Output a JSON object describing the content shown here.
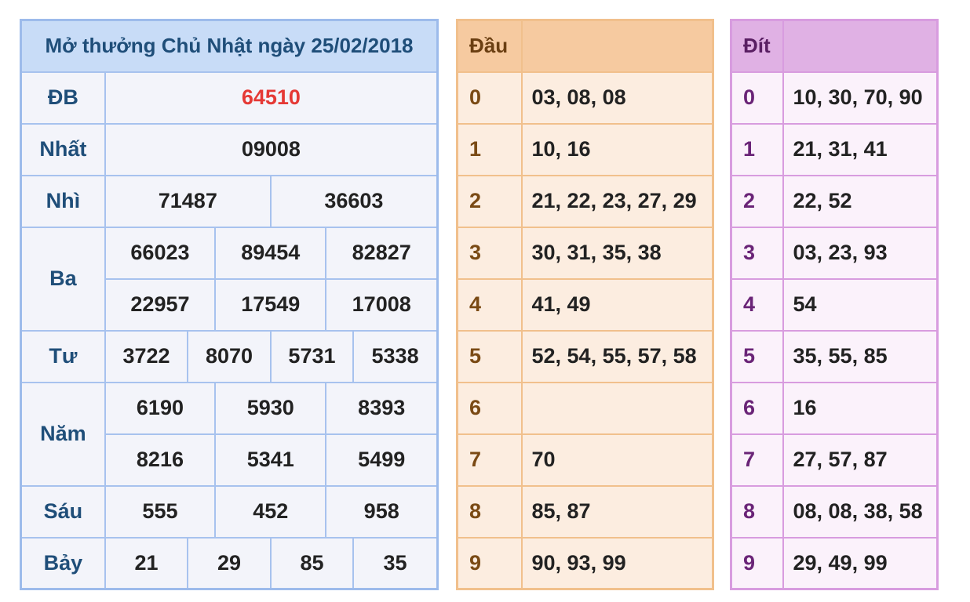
{
  "results": {
    "title": "Mở thưởng Chủ Nhật ngày 25/02/2018",
    "db": {
      "label": "ĐB",
      "values": [
        "64510"
      ]
    },
    "nhat": {
      "label": "Nhất",
      "values": [
        "09008"
      ]
    },
    "nhi": {
      "label": "Nhì",
      "values": [
        "71487",
        "36603"
      ]
    },
    "ba": {
      "label": "Ba",
      "values": [
        "66023",
        "89454",
        "82827",
        "22957",
        "17549",
        "17008"
      ]
    },
    "tu": {
      "label": "Tư",
      "values": [
        "3722",
        "8070",
        "5731",
        "5338"
      ]
    },
    "nam": {
      "label": "Năm",
      "values": [
        "6190",
        "5930",
        "8393",
        "8216",
        "5341",
        "5499"
      ]
    },
    "sau": {
      "label": "Sáu",
      "values": [
        "555",
        "452",
        "958"
      ]
    },
    "bay": {
      "label": "Bảy",
      "values": [
        "21",
        "29",
        "85",
        "35"
      ]
    }
  },
  "dau": {
    "header": "Đầu",
    "rows": [
      {
        "key": "0",
        "value": "03, 08, 08"
      },
      {
        "key": "1",
        "value": "10, 16"
      },
      {
        "key": "2",
        "value": "21, 22, 23, 27, 29"
      },
      {
        "key": "3",
        "value": "30, 31, 35, 38"
      },
      {
        "key": "4",
        "value": "41, 49"
      },
      {
        "key": "5",
        "value": "52, 54, 55, 57, 58"
      },
      {
        "key": "6",
        "value": ""
      },
      {
        "key": "7",
        "value": "70"
      },
      {
        "key": "8",
        "value": "85, 87"
      },
      {
        "key": "9",
        "value": "90, 93, 99"
      }
    ]
  },
  "dit": {
    "header": "Đít",
    "rows": [
      {
        "key": "0",
        "value": "10, 30, 70, 90"
      },
      {
        "key": "1",
        "value": "21, 31, 41"
      },
      {
        "key": "2",
        "value": "22, 52"
      },
      {
        "key": "3",
        "value": "03, 23, 93"
      },
      {
        "key": "4",
        "value": "54"
      },
      {
        "key": "5",
        "value": "35, 55, 85"
      },
      {
        "key": "6",
        "value": "16"
      },
      {
        "key": "7",
        "value": "27, 57, 87"
      },
      {
        "key": "8",
        "value": "08, 08, 38, 58"
      },
      {
        "key": "9",
        "value": "29, 49, 99"
      }
    ]
  },
  "colors": {
    "special_prize": "#e53935",
    "results_header": "#c8dcf7",
    "dau_header": "#f6caa0",
    "dit_header": "#e0b1e4"
  }
}
